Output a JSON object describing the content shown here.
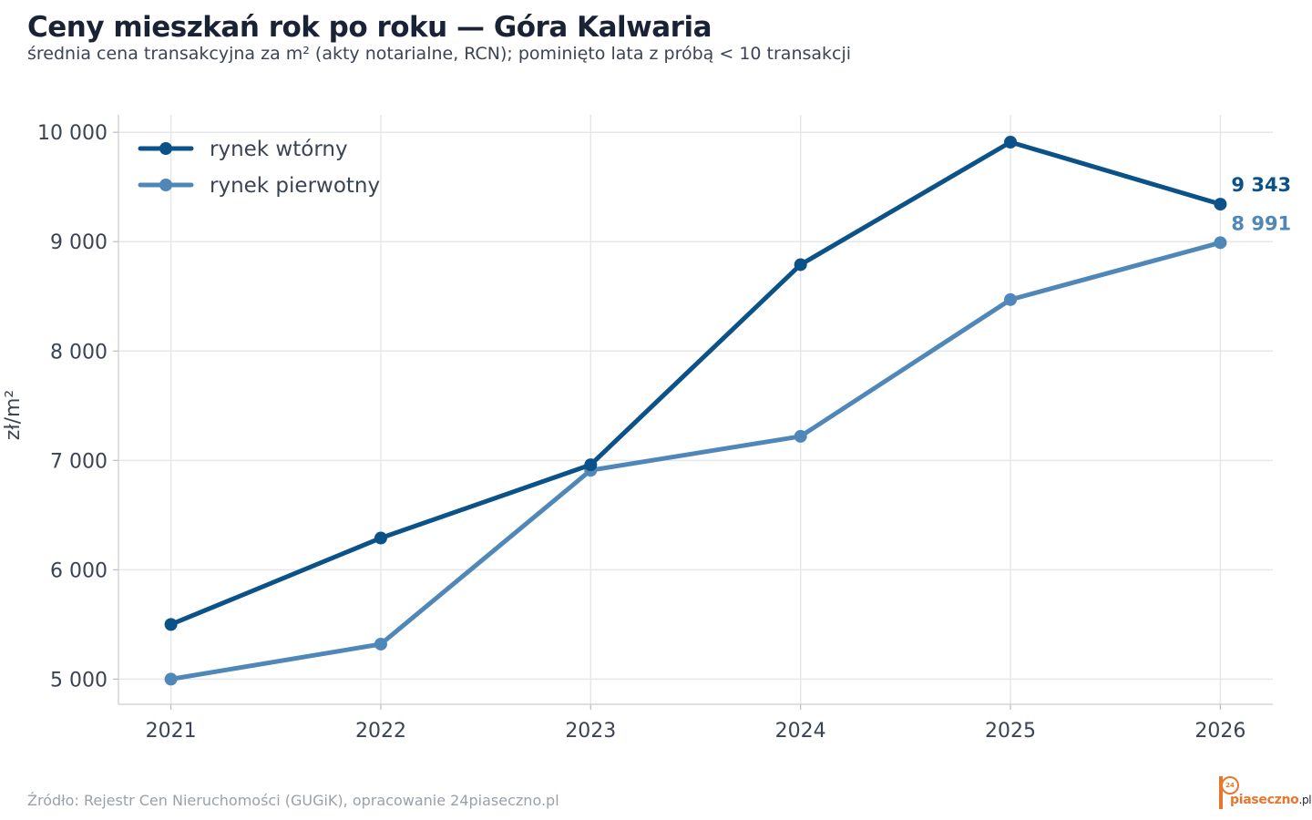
{
  "header": {
    "title": "Ceny mieszkań rok po roku — Góra Kalwaria",
    "subtitle": "średnia cena transakcyjna za m² (akty notarialne, RCN); pominięto lata z próbą < 10 transakcji"
  },
  "footer": {
    "source": "Źródło: Rejestr Cen Nieruchomości (GUGiK), opracowanie 24piaseczno.pl",
    "logo_badge": "24",
    "logo_main": "piaseczno",
    "logo_suffix": ".pl"
  },
  "chart_data": {
    "type": "line",
    "title": "Ceny mieszkań rok po roku — Góra Kalwaria",
    "subtitle": "średnia cena transakcyjna za m² (akty notarialne, RCN); pominięto lata z próbą < 10 transakcji",
    "xlabel": "",
    "ylabel": "zł/m²",
    "x": [
      2021,
      2022,
      2023,
      2024,
      2025,
      2026
    ],
    "x_tick_labels": [
      "2021",
      "2022",
      "2023",
      "2024",
      "2025",
      "2026"
    ],
    "y_ticks": [
      5000,
      6000,
      7000,
      8000,
      9000,
      10000
    ],
    "y_tick_labels": [
      "5 000",
      "6 000",
      "7 000",
      "8 000",
      "9 000",
      "10 000"
    ],
    "ylim": [
      4770,
      10160
    ],
    "xlim": [
      2020.75,
      2026.25
    ],
    "grid": true,
    "legend_position": "top-left",
    "series": [
      {
        "name": "rynek wtórny",
        "color": "#0b5288",
        "values": [
          5500,
          6290,
          6960,
          8790,
          9910,
          9343
        ],
        "end_label": "9 343"
      },
      {
        "name": "rynek pierwotny",
        "color": "#4f88b8",
        "values": [
          5000,
          5320,
          6910,
          7220,
          8470,
          8991
        ],
        "end_label": "8 991"
      }
    ]
  }
}
